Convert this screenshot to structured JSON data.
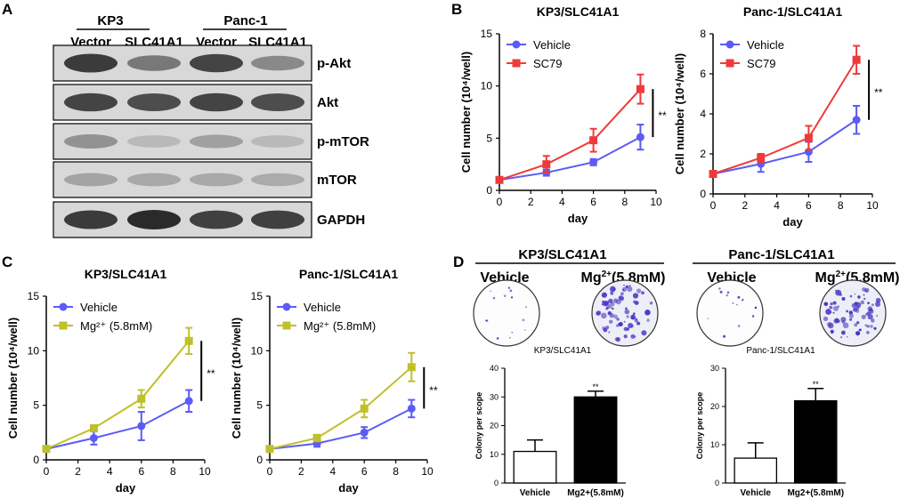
{
  "panel_letters": [
    "A",
    "B",
    "C",
    "D"
  ],
  "colors": {
    "vehicle_blue": "#5b5bf5",
    "sc79_red": "#ef3a3a",
    "mg_olive": "#c0c02a",
    "axis": "#000000",
    "blot_bg": "#d8d8d8",
    "band": "#2a2a2a",
    "colony_purple": "#4a36c4"
  },
  "panelA": {
    "group_labels": [
      "KP3",
      "Panc-1"
    ],
    "lane_labels": [
      "Vector",
      "SLC41A1",
      "Vector",
      "SLC41A1"
    ],
    "blots": [
      {
        "label": "p-Akt",
        "intensities": [
          0.9,
          0.55,
          0.85,
          0.45
        ]
      },
      {
        "label": "Akt",
        "intensities": [
          0.85,
          0.8,
          0.85,
          0.8
        ]
      },
      {
        "label": "p-mTOR",
        "intensities": [
          0.4,
          0.18,
          0.32,
          0.18
        ]
      },
      {
        "label": "mTOR",
        "intensities": [
          0.3,
          0.28,
          0.28,
          0.26
        ]
      },
      {
        "label": "GAPDH",
        "intensities": [
          0.9,
          1.0,
          0.88,
          0.88
        ]
      }
    ]
  },
  "chart_data": [
    {
      "type": "line",
      "panel": "B",
      "title": "KP3/SLC41A1",
      "xlabel": "day",
      "ylabel": "Cell number (10⁴/well)",
      "xlim": [
        0,
        10
      ],
      "ylim": [
        0,
        15
      ],
      "xticks": [
        0,
        2,
        4,
        6,
        8,
        10
      ],
      "yticks": [
        0,
        5,
        10,
        15
      ],
      "x": [
        0,
        3,
        6,
        9
      ],
      "series": [
        {
          "name": "Vehicle",
          "marker": "circle",
          "values": [
            1.0,
            1.7,
            2.7,
            5.1
          ],
          "errors": [
            0.1,
            0.3,
            0.3,
            1.2
          ]
        },
        {
          "name": "SC79",
          "marker": "square",
          "values": [
            1.0,
            2.5,
            4.8,
            9.7
          ],
          "errors": [
            0.1,
            0.8,
            1.1,
            1.4
          ]
        }
      ],
      "significance": "**"
    },
    {
      "type": "line",
      "panel": "B",
      "title": "Panc-1/SLC41A1",
      "xlabel": "day",
      "ylabel": "Cell number (10⁴/well)",
      "xlim": [
        0,
        10
      ],
      "ylim": [
        0,
        8
      ],
      "xticks": [
        0,
        2,
        4,
        6,
        8,
        10
      ],
      "yticks": [
        0,
        2,
        4,
        6,
        8
      ],
      "x": [
        0,
        3,
        6,
        9
      ],
      "series": [
        {
          "name": "Vehicle",
          "marker": "circle",
          "values": [
            1.0,
            1.5,
            2.1,
            3.7
          ],
          "errors": [
            0.05,
            0.4,
            0.5,
            0.7
          ]
        },
        {
          "name": "SC79",
          "marker": "square",
          "values": [
            1.0,
            1.8,
            2.8,
            6.7
          ],
          "errors": [
            0.05,
            0.2,
            0.6,
            0.7
          ]
        }
      ],
      "significance": "**"
    },
    {
      "type": "line",
      "panel": "C",
      "title": "KP3/SLC41A1",
      "xlabel": "day",
      "ylabel": "Cell number (10⁴/well)",
      "xlim": [
        0,
        10
      ],
      "ylim": [
        0,
        15
      ],
      "xticks": [
        0,
        2,
        4,
        6,
        8,
        10
      ],
      "yticks": [
        0,
        5,
        10,
        15
      ],
      "x": [
        0,
        3,
        6,
        9
      ],
      "series": [
        {
          "name": "Vehicle",
          "marker": "circle",
          "values": [
            1.0,
            2.0,
            3.1,
            5.4
          ],
          "errors": [
            0.05,
            0.6,
            1.3,
            1.0
          ]
        },
        {
          "name": "Mg²⁺ (5.8mM)",
          "marker": "square",
          "values": [
            1.0,
            2.9,
            5.6,
            10.9
          ],
          "errors": [
            0.05,
            0.2,
            0.8,
            1.2
          ]
        }
      ],
      "significance": "**"
    },
    {
      "type": "line",
      "panel": "C",
      "title": "Panc-1/SLC41A1",
      "xlabel": "day",
      "ylabel": "Cell number (10⁴/well)",
      "xlim": [
        0,
        10
      ],
      "ylim": [
        0,
        15
      ],
      "xticks": [
        0,
        2,
        4,
        6,
        8,
        10
      ],
      "yticks": [
        0,
        5,
        10,
        15
      ],
      "x": [
        0,
        3,
        6,
        9
      ],
      "series": [
        {
          "name": "Vehicle",
          "marker": "circle",
          "values": [
            1.0,
            1.5,
            2.5,
            4.7
          ],
          "errors": [
            0.05,
            0.3,
            0.5,
            0.8
          ]
        },
        {
          "name": "Mg²⁺ (5.8mM)",
          "marker": "square",
          "values": [
            1.0,
            2.0,
            4.7,
            8.5
          ],
          "errors": [
            0.05,
            0.3,
            0.8,
            1.3
          ]
        }
      ],
      "significance": "**"
    },
    {
      "type": "bar",
      "panel": "D",
      "title": "KP3/SLC41A1",
      "ylabel": "Colony per scope",
      "ylim": [
        0,
        40
      ],
      "yticks": [
        0,
        10,
        20,
        30,
        40
      ],
      "categories": [
        "Vehicle",
        "Mg2+(5.8mM)"
      ],
      "values": [
        11,
        30
      ],
      "errors": [
        4,
        2
      ],
      "fills": [
        "white",
        "black"
      ],
      "significance": "**"
    },
    {
      "type": "bar",
      "panel": "D",
      "title": "Panc-1/SLC41A1",
      "ylabel": "Colony per scope",
      "ylim": [
        0,
        30
      ],
      "yticks": [
        0,
        10,
        20,
        30
      ],
      "categories": [
        "Vehicle",
        "Mg2+(5.8mM)"
      ],
      "values": [
        6.5,
        21.5
      ],
      "errors": [
        4,
        3.2
      ],
      "fills": [
        "white",
        "black"
      ],
      "significance": "**"
    }
  ],
  "panelD": {
    "headers": [
      "KP3/SLC41A1",
      "Panc-1/SLC41A1"
    ],
    "dish_labels": [
      "Vehicle",
      "Mg",
      "2+",
      "(5.8mM)"
    ],
    "dish_captions": [
      "KP3/SLC41A1",
      "Panc-1/SLC41A1"
    ]
  }
}
